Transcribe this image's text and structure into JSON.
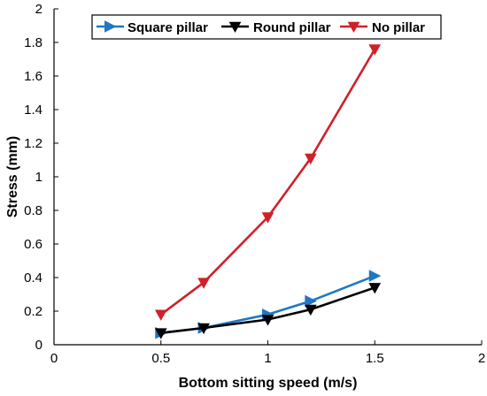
{
  "chart_data": {
    "type": "line",
    "xlabel": "Bottom sitting speed (m/s)",
    "ylabel": "Stress (mm)",
    "xlim": [
      0,
      2
    ],
    "ylim": [
      0,
      2
    ],
    "x_ticks": [
      "0",
      "0.5",
      "1",
      "1.5",
      "2"
    ],
    "y_ticks": [
      "0",
      "0.2",
      "0.4",
      "0.6",
      "0.8",
      "1",
      "1.2",
      "1.4",
      "1.6",
      "1.8",
      "2"
    ],
    "grid": false,
    "legend_position": "top-right",
    "series": [
      {
        "name": "Square pillar",
        "color": "#1f77c4",
        "marker": "triangle-right",
        "x": [
          0.5,
          0.7,
          1.0,
          1.2,
          1.5
        ],
        "y": [
          0.07,
          0.1,
          0.18,
          0.26,
          0.41
        ]
      },
      {
        "name": "Round pillar",
        "color": "#000000",
        "marker": "triangle-down",
        "x": [
          0.5,
          0.7,
          1.0,
          1.2,
          1.5
        ],
        "y": [
          0.07,
          0.1,
          0.15,
          0.21,
          0.34
        ]
      },
      {
        "name": "No pillar",
        "color": "#d0202a",
        "marker": "triangle-down",
        "x": [
          0.5,
          0.7,
          1.0,
          1.2,
          1.5
        ],
        "y": [
          0.18,
          0.37,
          0.76,
          1.11,
          1.76
        ]
      }
    ]
  }
}
